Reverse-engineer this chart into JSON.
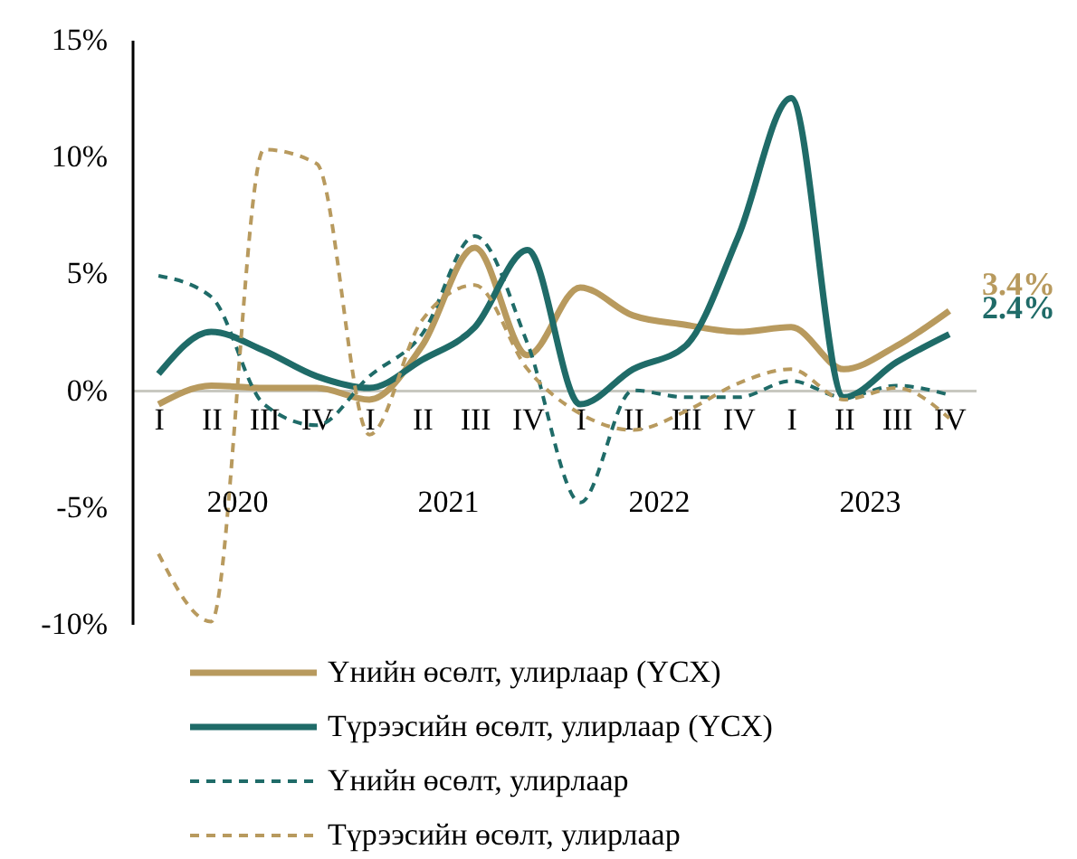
{
  "chart_data": {
    "type": "line",
    "categories": [
      "I",
      "II",
      "III",
      "IV",
      "I",
      "II",
      "III",
      "IV",
      "I",
      "II",
      "III",
      "IV",
      "I",
      "II",
      "III",
      "IV"
    ],
    "series": [
      {
        "name": "Үнийн өсөлт, улирлаар (ҮСХ)",
        "color": "#b89a5e",
        "line_style": "solid",
        "values": [
          -0.6,
          0.2,
          0.1,
          0.1,
          -0.4,
          1.9,
          6.1,
          1.5,
          4.4,
          3.2,
          2.8,
          2.5,
          2.7,
          0.9,
          1.9,
          3.4
        ]
      },
      {
        "name": "Түрээсийн өсөлт, улирлаар (ҮСХ)",
        "color": "#1f6b68",
        "line_style": "solid",
        "values": [
          0.7,
          2.5,
          1.7,
          0.6,
          0.1,
          1.3,
          2.7,
          6.0,
          -0.6,
          0.9,
          1.9,
          6.6,
          12.5,
          -0.3,
          1.2,
          2.4
        ]
      },
      {
        "name": "Үнийн өсөлт, улирлаар",
        "color": "#1f6b68",
        "line_style": "dashed",
        "values": [
          4.9,
          4.0,
          -0.6,
          -1.5,
          0.6,
          2.4,
          6.6,
          2.0,
          -4.8,
          0,
          -0.3,
          -0.3,
          0.4,
          -0.3,
          0.2,
          -0.2
        ]
      },
      {
        "name": "Түрээсийн өсөлт, улирлаар",
        "color": "#b89a5e",
        "line_style": "dashed",
        "values": [
          -7.0,
          -9.9,
          10.3,
          9.7,
          -1.9,
          3.0,
          4.5,
          0.9,
          -1.0,
          -1.7,
          -0.9,
          0.3,
          0.9,
          -0.4,
          0.1,
          -1.2
        ]
      }
    ],
    "ylim": [
      -10,
      15
    ],
    "yticks": [
      {
        "value": -10,
        "label": "-10%"
      },
      {
        "value": -5,
        "label": "-5%"
      },
      {
        "value": 0,
        "label": "0%"
      },
      {
        "value": 5,
        "label": "5%"
      },
      {
        "value": 10,
        "label": "10%"
      },
      {
        "value": 15,
        "label": "15%"
      }
    ],
    "annotations": [
      "2020",
      "2021",
      "2022",
      "2023",
      "3.4%",
      "2.4%"
    ],
    "legend": "bottom"
  }
}
